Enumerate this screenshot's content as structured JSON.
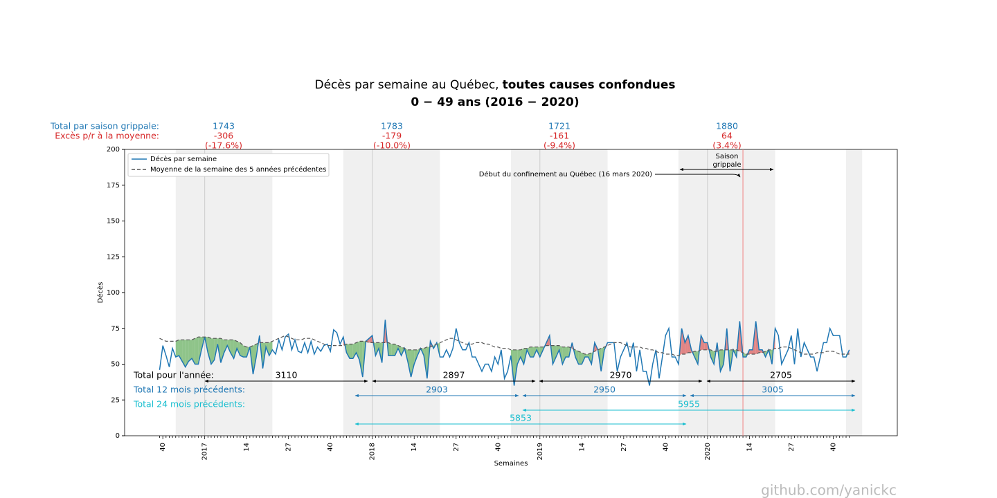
{
  "chart_data": {
    "type": "line",
    "title": {
      "text": "Décès par semaine au Québec,",
      "bold": "toutes causes confondues"
    },
    "subtitle": "0 − 49 ans (2016 − 2020)",
    "xlabel": "Semaines",
    "ylabel": "Décès",
    "ylim": [
      0,
      200
    ],
    "yticks": [
      0,
      25,
      50,
      75,
      100,
      125,
      150,
      175,
      200
    ],
    "categories": [
      null,
      "40",
      null,
      null,
      null,
      null,
      null,
      null,
      null,
      null,
      null,
      null,
      null,
      null,
      "2017",
      null,
      null,
      null,
      null,
      null,
      null,
      null,
      null,
      null,
      null,
      null,
      null,
      "14",
      null,
      null,
      null,
      null,
      null,
      null,
      null,
      null,
      null,
      null,
      null,
      null,
      "27",
      null,
      null,
      null,
      null,
      null,
      null,
      null,
      null,
      null,
      null,
      null,
      null,
      "40",
      null,
      null,
      null,
      null,
      null,
      null,
      null,
      null,
      null,
      null,
      null,
      null,
      "2018",
      null,
      null,
      null,
      null,
      null,
      null,
      null,
      null,
      null,
      null,
      null,
      null,
      "14",
      null,
      null,
      null,
      null,
      null,
      null,
      null,
      null,
      null,
      null,
      null,
      null,
      "27",
      null,
      null,
      null,
      null,
      null,
      null,
      null,
      null,
      null,
      null,
      null,
      null,
      "40",
      null,
      null,
      null,
      null,
      null,
      null,
      null,
      null,
      null,
      null,
      null,
      null,
      "2019",
      null,
      null,
      null,
      null,
      null,
      null,
      null,
      null,
      null,
      null,
      null,
      null,
      "14",
      null,
      null,
      null,
      null,
      null,
      null,
      null,
      null,
      null,
      null,
      null,
      null,
      "27",
      null,
      null,
      null,
      null,
      null,
      null,
      null,
      null,
      null,
      null,
      null,
      null,
      "40",
      null,
      null,
      null,
      null,
      null,
      null,
      null,
      null,
      null,
      null,
      null,
      null,
      "2020",
      null,
      null,
      null,
      null,
      null,
      null,
      null,
      null,
      null,
      null,
      null,
      null,
      "14",
      null,
      null,
      null,
      null,
      null,
      null,
      null,
      null,
      null,
      null,
      null,
      null,
      "27",
      null,
      null,
      null,
      null,
      null,
      null,
      null,
      null,
      null,
      null,
      null,
      null,
      "40",
      null,
      null,
      null,
      null,
      null
    ],
    "series": [
      {
        "name": "Décès par semaine",
        "color": "#1f77b4",
        "linestyle": "solid",
        "values": [
          46,
          63,
          56,
          48,
          61,
          55,
          56,
          52,
          48,
          52,
          54,
          50,
          50,
          60,
          69,
          58,
          50,
          53,
          64,
          51,
          58,
          63,
          58,
          54,
          61,
          56,
          55,
          55,
          62,
          43,
          55,
          70,
          47,
          62,
          56,
          60,
          57,
          67,
          60,
          69,
          71,
          60,
          67,
          59,
          58,
          65,
          58,
          66,
          57,
          62,
          59,
          63,
          64,
          59,
          74,
          72,
          64,
          69,
          58,
          54,
          54,
          58,
          53,
          41,
          66,
          68,
          70,
          56,
          61,
          51,
          81,
          56,
          56,
          56,
          61,
          56,
          61,
          52,
          41,
          50,
          56,
          61,
          56,
          40,
          66,
          61,
          65,
          55,
          55,
          60,
          55,
          61,
          75,
          65,
          60,
          60,
          65,
          55,
          55,
          50,
          45,
          50,
          50,
          45,
          55,
          50,
          60,
          40,
          45,
          56,
          35,
          50,
          55,
          50,
          60,
          55,
          55,
          60,
          55,
          60,
          65,
          70,
          50,
          55,
          60,
          50,
          55,
          55,
          65,
          55,
          50,
          50,
          55,
          55,
          50,
          65,
          60,
          45,
          60,
          65,
          65,
          65,
          45,
          55,
          60,
          65,
          55,
          65,
          45,
          60,
          45,
          45,
          35,
          50,
          60,
          40,
          55,
          70,
          75,
          55,
          55,
          50,
          75,
          65,
          70,
          60,
          55,
          50,
          70,
          65,
          65,
          55,
          50,
          65,
          45,
          50,
          75,
          45,
          60,
          55,
          80,
          55,
          55,
          60,
          60,
          80,
          60,
          60,
          55,
          60,
          50,
          75,
          70,
          50,
          55,
          60,
          70,
          50,
          75,
          55,
          65,
          60,
          55,
          55,
          45,
          55,
          65,
          65,
          75,
          70,
          70,
          70,
          55,
          55,
          60
        ]
      },
      {
        "name": "Moyenne de la semaine des 5 années précédentes",
        "color": "#555555",
        "linestyle": "dashed",
        "values": [
          68,
          67,
          66,
          66,
          66,
          66,
          67,
          67,
          67,
          67,
          67,
          68,
          69,
          69,
          69,
          69,
          68,
          68,
          68,
          68,
          67,
          67,
          67,
          67,
          66,
          65,
          63,
          62,
          62,
          63,
          64,
          65,
          65,
          65,
          65,
          66,
          67,
          68,
          69,
          70,
          69,
          68,
          67,
          67,
          67,
          68,
          68,
          68,
          67,
          66,
          65,
          64,
          63,
          63,
          63,
          63,
          63,
          63,
          64,
          64,
          64,
          65,
          66,
          66,
          66,
          65,
          65,
          65,
          65,
          65,
          65,
          65,
          64,
          64,
          63,
          62,
          61,
          60,
          60,
          60,
          60,
          61,
          61,
          62,
          62,
          63,
          64,
          65,
          66,
          67,
          68,
          68,
          67,
          66,
          65,
          64,
          64,
          64,
          65,
          65,
          65,
          64,
          64,
          63,
          62,
          62,
          61,
          61,
          61,
          60,
          60,
          60,
          60,
          61,
          61,
          62,
          62,
          62,
          62,
          62,
          63,
          63,
          63,
          63,
          63,
          62,
          62,
          62,
          61,
          60,
          59,
          58,
          57,
          57,
          58,
          59,
          60,
          61,
          62,
          63,
          64,
          65,
          65,
          65,
          64,
          63,
          62,
          62,
          62,
          62,
          61,
          61,
          60,
          60,
          59,
          58,
          58,
          57,
          57,
          57,
          56,
          56,
          57,
          57,
          58,
          58,
          59,
          59,
          60,
          60,
          60,
          60,
          59,
          59,
          60,
          60,
          60,
          60,
          60,
          60,
          59,
          58,
          57,
          57,
          57,
          57,
          58,
          58,
          59,
          60,
          60,
          61,
          61,
          62,
          62,
          62,
          61,
          60,
          59,
          58,
          57,
          57,
          57,
          57,
          58,
          58,
          58,
          59,
          59,
          59,
          58,
          57,
          57,
          57,
          57
        ]
      }
    ],
    "below_color": "#8fc48a",
    "above_color": "#e08585",
    "flu_season_spans": [
      [
        5,
        35
      ],
      [
        57,
        87
      ],
      [
        109,
        139
      ],
      [
        161,
        191
      ],
      [
        213,
        218
      ]
    ],
    "legend": "upper left",
    "season_totals": {
      "label": "Total par saison grippale:",
      "values": [
        1743,
        1783,
        1721,
        1880
      ],
      "color": "#1f77b4"
    },
    "season_excess": {
      "label": "Excès p/r à la moyenne:",
      "values": [
        -306,
        -179,
        -161,
        64
      ],
      "percent_labels": [
        "(-17.6%)",
        "(-10.0%)",
        "(-9.4%)",
        "(3.4%)"
      ],
      "color": "#d62728"
    },
    "year_totals": {
      "label": "Total pour l'année:",
      "values": [
        3110,
        2897,
        2970,
        2705
      ],
      "color": "#000000"
    },
    "totals_12_months": {
      "label": "Total 12 mois précédents:",
      "values": [
        2903,
        2950,
        3005
      ],
      "color": "#1f77b4"
    },
    "totals_24_months": {
      "label": "Total 24 mois précédents:",
      "values": [
        5955,
        5853
      ],
      "color": "#17becf"
    },
    "annotations": {
      "lockdown": "Début du confinement au Québec (16 mars 2020)",
      "flu_season": [
        "Saison",
        "grippale"
      ]
    },
    "watermark": "github.com/yanickc"
  }
}
